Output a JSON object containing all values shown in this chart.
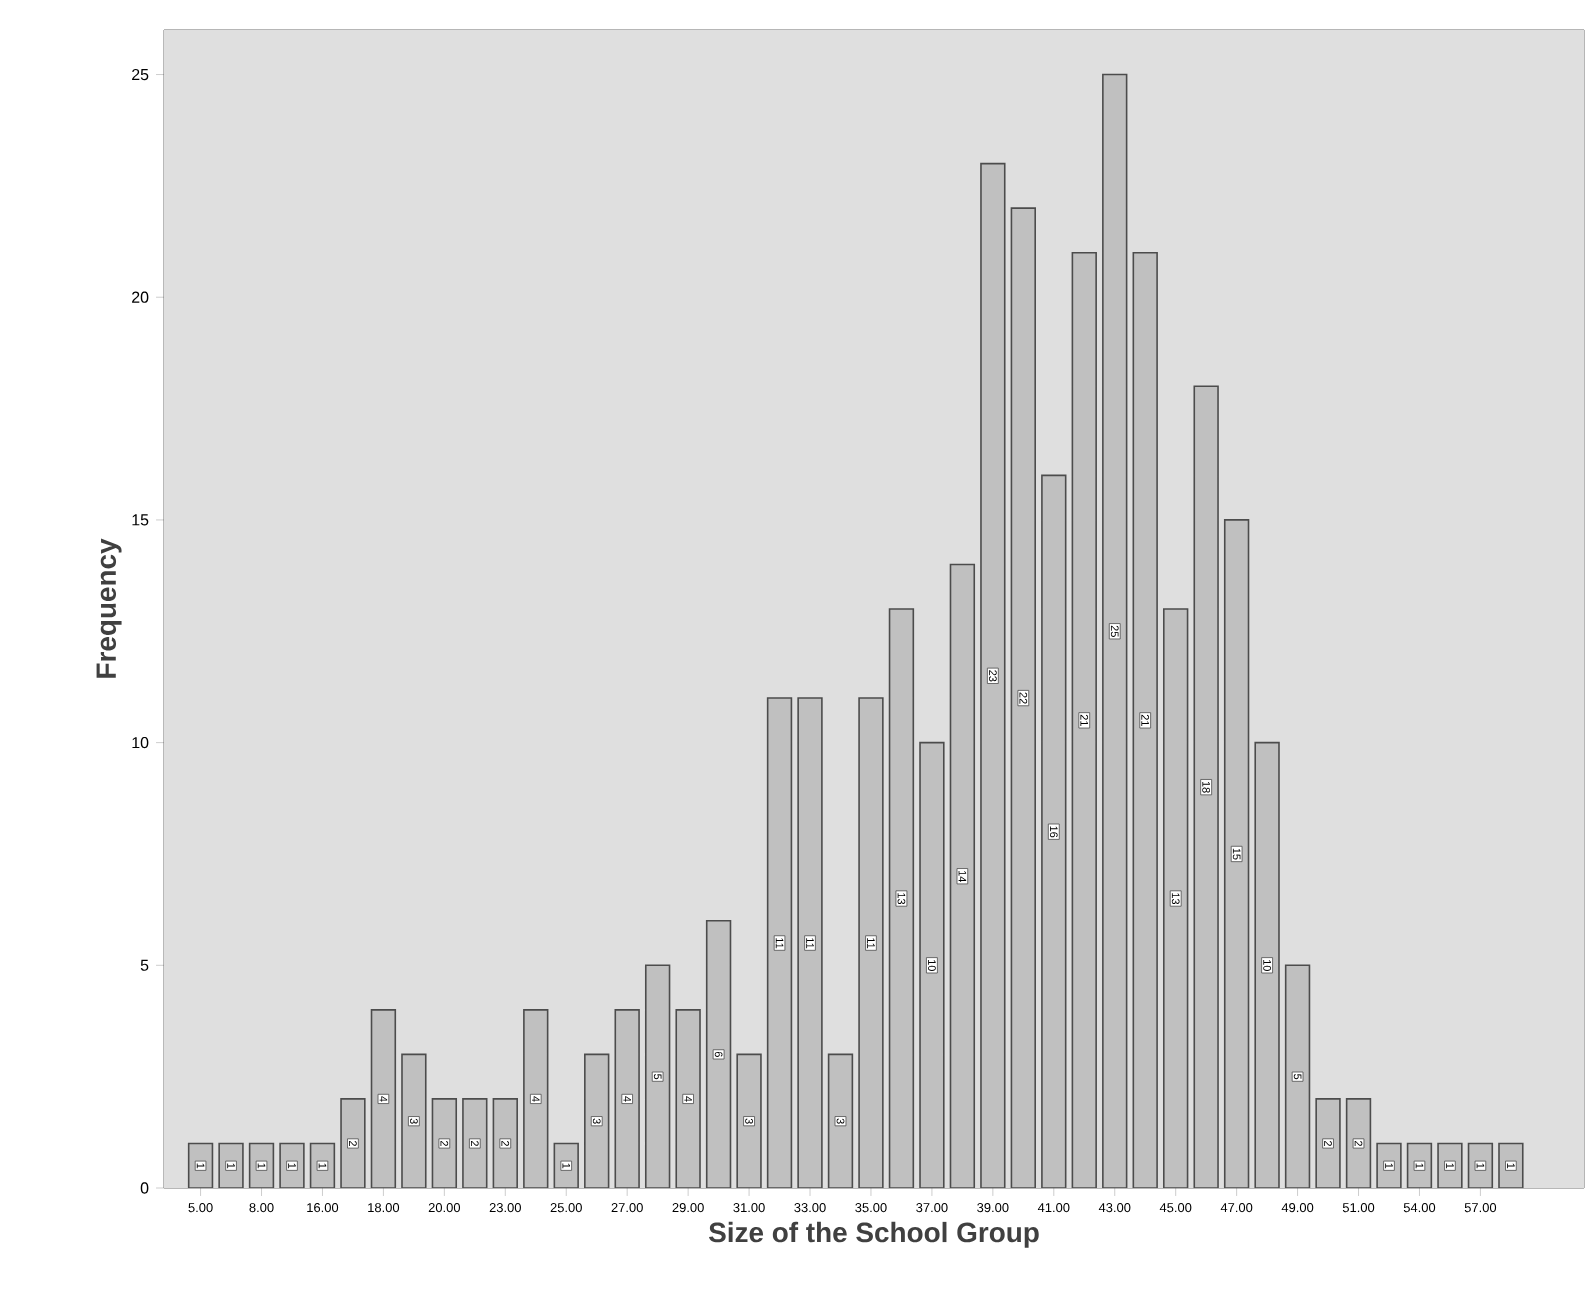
{
  "chart_data": {
    "type": "bar",
    "xlabel": "Size of the School Group",
    "ylabel": "Frequency",
    "categories": [
      "5.00",
      null,
      "8.00",
      null,
      "16.00",
      null,
      "18.00",
      null,
      "20.00",
      null,
      "23.00",
      null,
      "25.00",
      null,
      "27.00",
      null,
      "29.00",
      null,
      "31.00",
      null,
      "33.00",
      null,
      "35.00",
      null,
      "37.00",
      null,
      "39.00",
      null,
      "41.00",
      null,
      "43.00",
      null,
      "45.00",
      null,
      "47.00",
      null,
      "49.00",
      null,
      "51.00",
      null,
      "54.00",
      null,
      "57.00",
      null
    ],
    "values": [
      1,
      1,
      1,
      1,
      1,
      2,
      4,
      3,
      2,
      2,
      2,
      4,
      1,
      3,
      4,
      5,
      4,
      6,
      3,
      11,
      11,
      3,
      11,
      13,
      10,
      14,
      23,
      22,
      16,
      21,
      25,
      21,
      13,
      18,
      15,
      10,
      5,
      2,
      2,
      1,
      1,
      1,
      1,
      1
    ],
    "color": "#c0c0c0",
    "ylim": [
      0,
      26
    ],
    "yticks": [
      0,
      5,
      10,
      15,
      20,
      25
    ],
    "data_labels": true
  }
}
